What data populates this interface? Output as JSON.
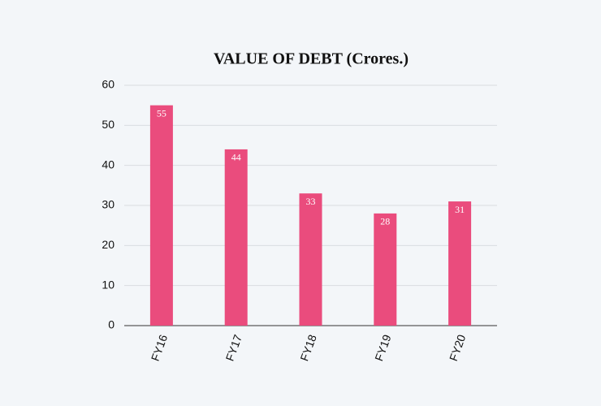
{
  "chart_data": {
    "type": "bar",
    "title": "VALUE OF DEBT (Crores.)",
    "categories": [
      "FY16",
      "FY17",
      "FY18",
      "FY19",
      "FY20"
    ],
    "values": [
      55,
      44,
      33,
      28,
      31
    ],
    "color": "#ea4c7d",
    "ylim": [
      0,
      60
    ],
    "yticks": [
      0,
      10,
      20,
      30,
      40,
      50,
      60
    ],
    "grid": true
  }
}
